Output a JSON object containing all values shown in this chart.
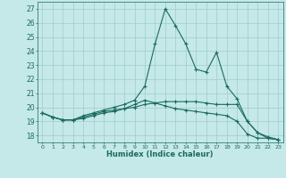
{
  "xlabel": "Humidex (Indice chaleur)",
  "xlim": [
    -0.5,
    23.5
  ],
  "ylim": [
    17.5,
    27.5
  ],
  "yticks": [
    18,
    19,
    20,
    21,
    22,
    23,
    24,
    25,
    26,
    27
  ],
  "xticks": [
    0,
    1,
    2,
    3,
    4,
    5,
    6,
    7,
    8,
    9,
    10,
    11,
    12,
    13,
    14,
    15,
    16,
    17,
    18,
    19,
    20,
    21,
    22,
    23
  ],
  "background_color": "#c5e8e8",
  "grid_color": "#a0cccc",
  "line_color": "#1a6b60",
  "series": [
    [
      19.6,
      19.3,
      19.1,
      19.1,
      19.2,
      19.4,
      19.6,
      19.7,
      19.9,
      20.2,
      20.5,
      20.3,
      20.1,
      19.9,
      19.8,
      19.7,
      19.6,
      19.5,
      19.4,
      19.0,
      18.1,
      17.8,
      17.8,
      17.7
    ],
    [
      19.6,
      19.3,
      19.1,
      19.1,
      19.4,
      19.6,
      19.8,
      20.0,
      20.2,
      20.5,
      21.5,
      24.5,
      27.0,
      25.8,
      24.5,
      22.7,
      22.5,
      23.9,
      21.5,
      20.6,
      19.0,
      18.2,
      17.8,
      17.7
    ],
    [
      19.6,
      19.3,
      19.1,
      19.1,
      19.3,
      19.5,
      19.7,
      19.8,
      19.9,
      20.0,
      20.2,
      20.3,
      20.4,
      20.4,
      20.4,
      20.4,
      20.3,
      20.2,
      20.2,
      20.2,
      19.0,
      18.2,
      17.9,
      17.7
    ]
  ]
}
